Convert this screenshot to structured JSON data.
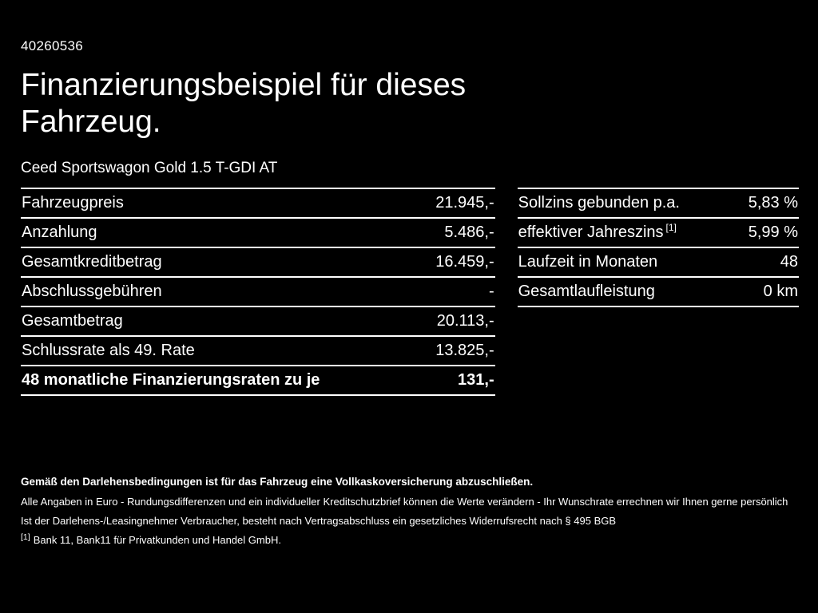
{
  "page": {
    "id": "40260536",
    "title_line1": "Finanzierungsbeispiel für dieses",
    "title_line2": "Fahrzeug.",
    "subtitle": "Ceed Sportswagon Gold 1.5 T-GDI AT"
  },
  "left_table": {
    "rows": [
      {
        "label": "Fahrzeugpreis",
        "value": "21.945,-"
      },
      {
        "label": "Anzahlung",
        "value": "5.486,-"
      },
      {
        "label": "Gesamtkreditbetrag",
        "value": "16.459,-"
      },
      {
        "label": "Abschlussgebühren",
        "value": "-"
      },
      {
        "label": "Gesamtbetrag",
        "value": "20.113,-"
      },
      {
        "label": "Schlussrate als 49. Rate",
        "value": "13.825,-"
      },
      {
        "label": "48 monatliche Finanzierungsraten zu je",
        "value": "131,-"
      }
    ]
  },
  "right_table": {
    "rows": [
      {
        "label": "Sollzins gebunden p.a.",
        "sup": "",
        "value": "5,83 %"
      },
      {
        "label": "effektiver Jahreszins",
        "sup": "[1]",
        "value": "5,99 %"
      },
      {
        "label": "Laufzeit in Monaten",
        "sup": "",
        "value": "48"
      },
      {
        "label": "Gesamtlaufleistung",
        "sup": "",
        "value": "0 km"
      }
    ]
  },
  "footer": {
    "bold_line": "Gemäß den Darlehensbedingungen ist für das Fahrzeug eine Vollkaskoversicherung abzuschließen.",
    "line2": "Alle Angaben in Euro - Rundungsdifferenzen und ein individueller Kreditschutzbrief können die Werte verändern - Ihr Wunschrate errechnen wir Ihnen gerne persönlich",
    "line3": "Ist der Darlehens-/Leasingnehmer Verbraucher, besteht nach Vertragsabschluss ein gesetzliches Widerrufsrecht nach § 495 BGB",
    "footnote_marker": "[1]",
    "footnote_text": "Bank 11, Bank11 für Privatkunden und Handel GmbH."
  }
}
